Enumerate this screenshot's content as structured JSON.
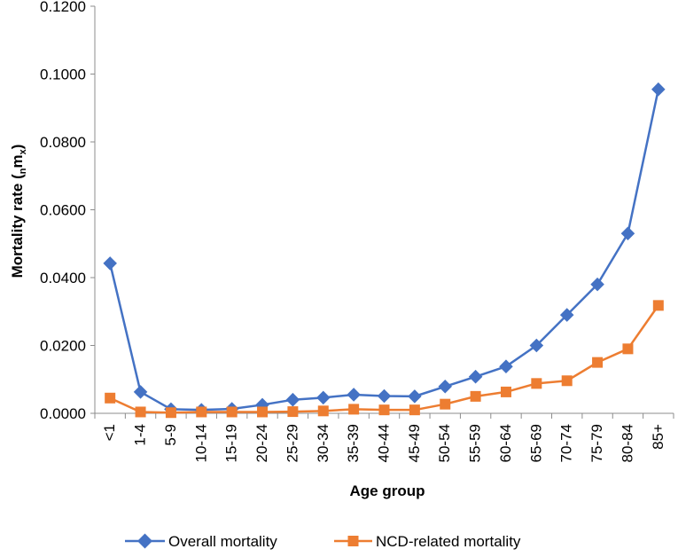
{
  "chart_data": {
    "type": "line",
    "title": "",
    "xlabel": "Age group",
    "ylabel": {
      "main": "Mortality  rate (",
      "sub1": "n",
      "mid": "m",
      "sub2": "x",
      "end": ")"
    },
    "categories": [
      "<1",
      "1-4",
      "5-9",
      "10-14",
      "15-19",
      "20-24",
      "25-29",
      "30-34",
      "35-39",
      "40-44",
      "45-49",
      "50-54",
      "55-59",
      "60-64",
      "65-69",
      "70-74",
      "75-79",
      "80-84",
      "85+"
    ],
    "ylim": [
      0,
      0.12
    ],
    "yticks": [
      0,
      0.02,
      0.04,
      0.06,
      0.08,
      0.1,
      0.12
    ],
    "ytick_labels": [
      "0.0000",
      "0.0200",
      "0.0400",
      "0.0600",
      "0.0800",
      "0.1000",
      "0.1200"
    ],
    "grid": false,
    "legend_position": "bottom",
    "series": [
      {
        "name": "Overall mortality",
        "color": "#4472C4",
        "marker": "diamond",
        "values": [
          0.0442,
          0.0063,
          0.0012,
          0.001,
          0.0013,
          0.0025,
          0.004,
          0.0046,
          0.0055,
          0.0051,
          0.005,
          0.0079,
          0.0108,
          0.0138,
          0.02,
          0.029,
          0.038,
          0.053,
          0.0955
        ]
      },
      {
        "name": "NCD-related mortality",
        "color": "#ED7D31",
        "marker": "square",
        "values": [
          0.0045,
          0.0004,
          0.0002,
          0.0004,
          0.0004,
          0.0004,
          0.0005,
          0.0007,
          0.0012,
          0.001,
          0.001,
          0.0027,
          0.005,
          0.0063,
          0.0088,
          0.0096,
          0.015,
          0.019,
          0.0318
        ]
      }
    ]
  }
}
